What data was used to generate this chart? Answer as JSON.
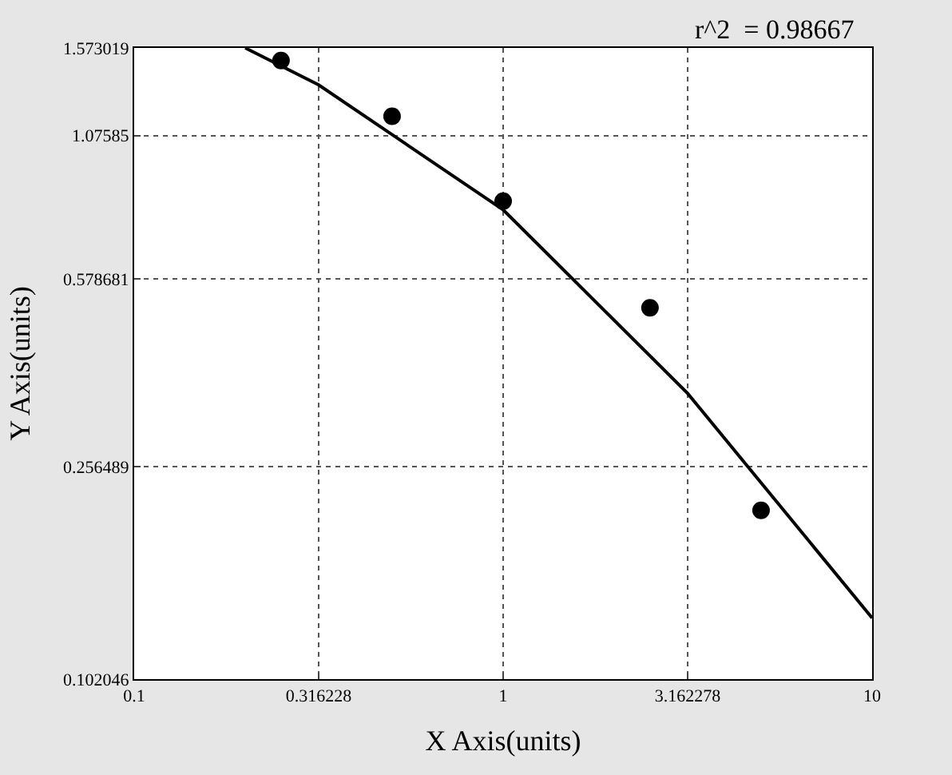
{
  "chart_data": {
    "type": "scatter",
    "xlabel": "X Axis(units)",
    "ylabel": "Y Axis(units)",
    "annotations": [
      "r^2  = 0.98667"
    ],
    "log": "xy",
    "grid": true,
    "xlim": [
      0.1,
      10
    ],
    "xticks": [
      0.1,
      0.316228,
      1,
      3.162278,
      10
    ],
    "ylim": [
      0.102046,
      1.573019
    ],
    "yticks": [
      0.102046,
      0.256489,
      0.578681,
      1.07585,
      1.573019
    ],
    "series": [
      {
        "marker": "circle",
        "color": "#000000",
        "x": [
          0.25,
          0.5,
          1,
          2.5,
          5
        ],
        "values": [
          1.49,
          1.17,
          0.81,
          0.51,
          0.212
        ]
      },
      {
        "type": "line",
        "color": "#000000",
        "marker": "none",
        "line_style": "solid",
        "x": [
          0.2,
          0.316228,
          1,
          3.162278,
          10
        ],
        "values": [
          1.573019,
          1.34,
          0.78,
          0.352,
          0.133
        ]
      }
    ]
  }
}
